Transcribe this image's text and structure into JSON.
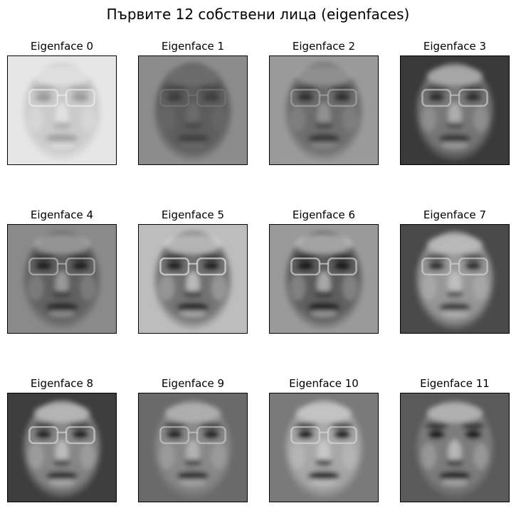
{
  "figure": {
    "title": "Първите 12 собствени лица (eigenfaces)"
  },
  "eigenfaces": [
    {
      "label": "Eigenface 0",
      "bg": "#e6e6e6",
      "skin": "#c9c9c9",
      "feat": "#9a9a9a",
      "hi": "#f4f4f4",
      "glasses": true
    },
    {
      "label": "Eigenface 1",
      "bg": "#8c8c8c",
      "skin": "#5a5a5a",
      "feat": "#3c3c3c",
      "hi": "#7a7a7a",
      "glasses": true
    },
    {
      "label": "Eigenface 2",
      "bg": "#9a9a9a",
      "skin": "#6a6a6a",
      "feat": "#2e2e2e",
      "hi": "#b0b0b0",
      "glasses": true
    },
    {
      "label": "Eigenface 3",
      "bg": "#3a3a3a",
      "skin": "#7a7a7a",
      "feat": "#2a2a2a",
      "hi": "#d8d8d8",
      "glasses": true
    },
    {
      "label": "Eigenface 4",
      "bg": "#8a8a8a",
      "skin": "#5e5e5e",
      "feat": "#1e1e1e",
      "hi": "#c8c8c8",
      "glasses": true
    },
    {
      "label": "Eigenface 5",
      "bg": "#bdbdbd",
      "skin": "#6e6e6e",
      "feat": "#1a1a1a",
      "hi": "#f6f6f6",
      "glasses": true
    },
    {
      "label": "Eigenface 6",
      "bg": "#9a9a9a",
      "skin": "#5a5a5a",
      "feat": "#141414",
      "hi": "#e8e8e8",
      "glasses": true
    },
    {
      "label": "Eigenface 7",
      "bg": "#4a4a4a",
      "skin": "#9c9c9c",
      "feat": "#2a2a2a",
      "hi": "#dcdcdc",
      "glasses": true
    },
    {
      "label": "Eigenface 8",
      "bg": "#3e3e3e",
      "skin": "#8a8a8a",
      "feat": "#1e1e1e",
      "hi": "#e4e4e4",
      "glasses": true
    },
    {
      "label": "Eigenface 9",
      "bg": "#6a6a6a",
      "skin": "#8a8a8a",
      "feat": "#202020",
      "hi": "#d4d4d4",
      "glasses": true
    },
    {
      "label": "Eigenface 10",
      "bg": "#7a7a7a",
      "skin": "#aaaaaa",
      "feat": "#121212",
      "hi": "#e0e0e0",
      "glasses": true
    },
    {
      "label": "Eigenface 11",
      "bg": "#5a5a5a",
      "skin": "#7e7e7e",
      "feat": "#151515",
      "hi": "#e6e6e6",
      "glasses": false
    }
  ]
}
